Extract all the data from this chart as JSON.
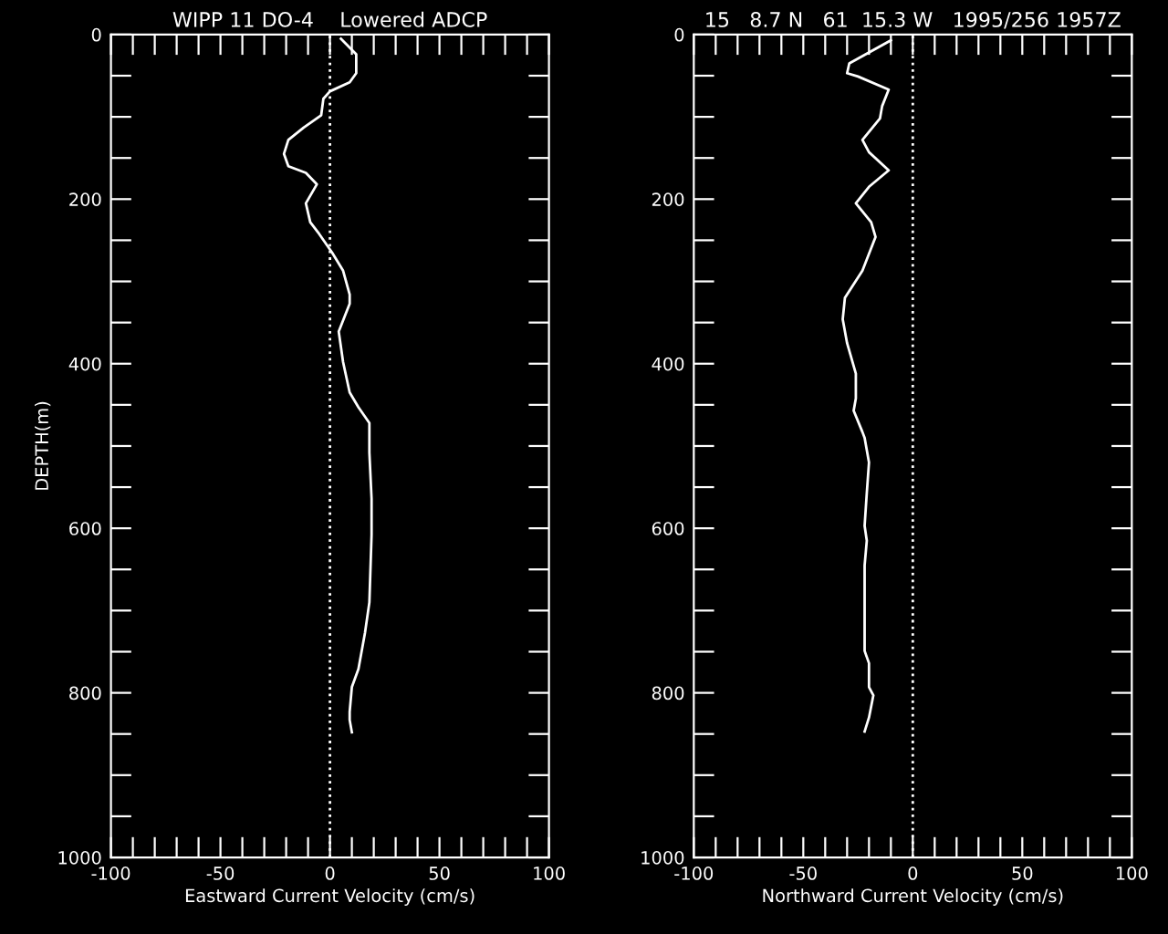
{
  "chart_data": [
    {
      "type": "line",
      "title": "WIPP 11 DO-4    Lowered ADCP",
      "xlabel": "Eastward Current Velocity (cm/s)",
      "ylabel": "DEPTH(m)",
      "orientation": "horizontal",
      "series": [
        {
          "color": "#ffffff",
          "values": [
            5,
            12,
            12,
            9,
            0,
            -3,
            -4,
            -12,
            -19,
            -21,
            -19,
            -11,
            -6,
            -11,
            -9,
            -5,
            1,
            6,
            9,
            9,
            4,
            6,
            9,
            13,
            18,
            18,
            19,
            19,
            18,
            16,
            13,
            10,
            9,
            9,
            10
          ],
          "x": [
            5,
            24,
            47,
            58,
            69,
            78,
            98,
            113,
            128,
            145,
            160,
            168,
            182,
            205,
            228,
            242,
            265,
            287,
            316,
            327,
            361,
            398,
            435,
            453,
            472,
            508,
            564,
            608,
            690,
            727,
            771,
            793,
            823,
            833,
            848
          ]
        }
      ],
      "xlim": [
        -100,
        100
      ],
      "ylim": [
        1000,
        0
      ],
      "xticks": [
        -100,
        {
          "value": -90,
          "label": null
        },
        {
          "value": -80,
          "label": null
        },
        {
          "value": -70,
          "label": null
        },
        {
          "value": -60,
          "label": null
        },
        -50,
        {
          "value": -40,
          "label": null
        },
        {
          "value": -30,
          "label": null
        },
        {
          "value": -20,
          "label": null
        },
        {
          "value": -10,
          "label": null
        },
        0,
        {
          "value": 10,
          "label": null
        },
        {
          "value": 20,
          "label": null
        },
        {
          "value": 30,
          "label": null
        },
        {
          "value": 40,
          "label": null
        },
        50,
        {
          "value": 60,
          "label": null
        },
        {
          "value": 70,
          "label": null
        },
        {
          "value": 80,
          "label": null
        },
        {
          "value": 90,
          "label": null
        },
        100
      ],
      "yticks": [
        0,
        {
          "value": 50,
          "label": null
        },
        {
          "value": 100,
          "label": null
        },
        {
          "value": 150,
          "label": null
        },
        200,
        {
          "value": 250,
          "label": null
        },
        {
          "value": 300,
          "label": null
        },
        {
          "value": 350,
          "label": null
        },
        400,
        {
          "value": 450,
          "label": null
        },
        {
          "value": 500,
          "label": null
        },
        {
          "value": 550,
          "label": null
        },
        600,
        {
          "value": 650,
          "label": null
        },
        {
          "value": 700,
          "label": null
        },
        {
          "value": 750,
          "label": null
        },
        800,
        {
          "value": 850,
          "label": null
        },
        {
          "value": 900,
          "label": null
        },
        {
          "value": 950,
          "label": null
        },
        1000
      ],
      "ref_lines": [
        {
          "axis": "x",
          "value": 0,
          "color": "#ffffff",
          "line_style": "dotted"
        }
      ],
      "grid": false,
      "legend": false
    },
    {
      "type": "line",
      "title": "15   8.7 N   61  15.3 W   1995/256 1957Z",
      "xlabel": "Northward Current Velocity (cm/s)",
      "orientation": "horizontal",
      "series": [
        {
          "color": "#ffffff",
          "values": [
            -10,
            -29,
            -30,
            -25,
            -11,
            -14,
            -15,
            -23,
            -20,
            -11,
            -20,
            -26,
            -19,
            -17,
            -23,
            -31,
            -32,
            -30,
            -26,
            -26,
            -27,
            -23,
            -22,
            -20,
            -21,
            -22,
            -21,
            -22,
            -22,
            -22,
            -20,
            -20,
            -18,
            -20,
            -22
          ],
          "x": [
            7,
            35,
            47,
            51,
            67,
            87,
            102,
            128,
            143,
            165,
            185,
            205,
            228,
            246,
            287,
            320,
            346,
            375,
            412,
            442,
            457,
            483,
            490,
            520,
            557,
            597,
            615,
            645,
            693,
            749,
            764,
            793,
            803,
            830,
            847
          ]
        }
      ],
      "xlim": [
        -100,
        100
      ],
      "ylim": [
        1000,
        0
      ],
      "xticks": [
        -100,
        {
          "value": -90,
          "label": null
        },
        {
          "value": -80,
          "label": null
        },
        {
          "value": -70,
          "label": null
        },
        {
          "value": -60,
          "label": null
        },
        -50,
        {
          "value": -40,
          "label": null
        },
        {
          "value": -30,
          "label": null
        },
        {
          "value": -20,
          "label": null
        },
        {
          "value": -10,
          "label": null
        },
        0,
        {
          "value": 10,
          "label": null
        },
        {
          "value": 20,
          "label": null
        },
        {
          "value": 30,
          "label": null
        },
        {
          "value": 40,
          "label": null
        },
        50,
        {
          "value": 60,
          "label": null
        },
        {
          "value": 70,
          "label": null
        },
        {
          "value": 80,
          "label": null
        },
        {
          "value": 90,
          "label": null
        },
        100
      ],
      "yticks": [
        0,
        {
          "value": 50,
          "label": null
        },
        {
          "value": 100,
          "label": null
        },
        {
          "value": 150,
          "label": null
        },
        200,
        {
          "value": 250,
          "label": null
        },
        {
          "value": 300,
          "label": null
        },
        {
          "value": 350,
          "label": null
        },
        400,
        {
          "value": 450,
          "label": null
        },
        {
          "value": 500,
          "label": null
        },
        {
          "value": 550,
          "label": null
        },
        600,
        {
          "value": 650,
          "label": null
        },
        {
          "value": 700,
          "label": null
        },
        {
          "value": 750,
          "label": null
        },
        800,
        {
          "value": 850,
          "label": null
        },
        {
          "value": 900,
          "label": null
        },
        {
          "value": 950,
          "label": null
        },
        1000
      ],
      "ref_lines": [
        {
          "axis": "x",
          "value": 0,
          "color": "#ffffff",
          "line_style": "dotted"
        }
      ],
      "grid": false,
      "legend": false
    }
  ]
}
